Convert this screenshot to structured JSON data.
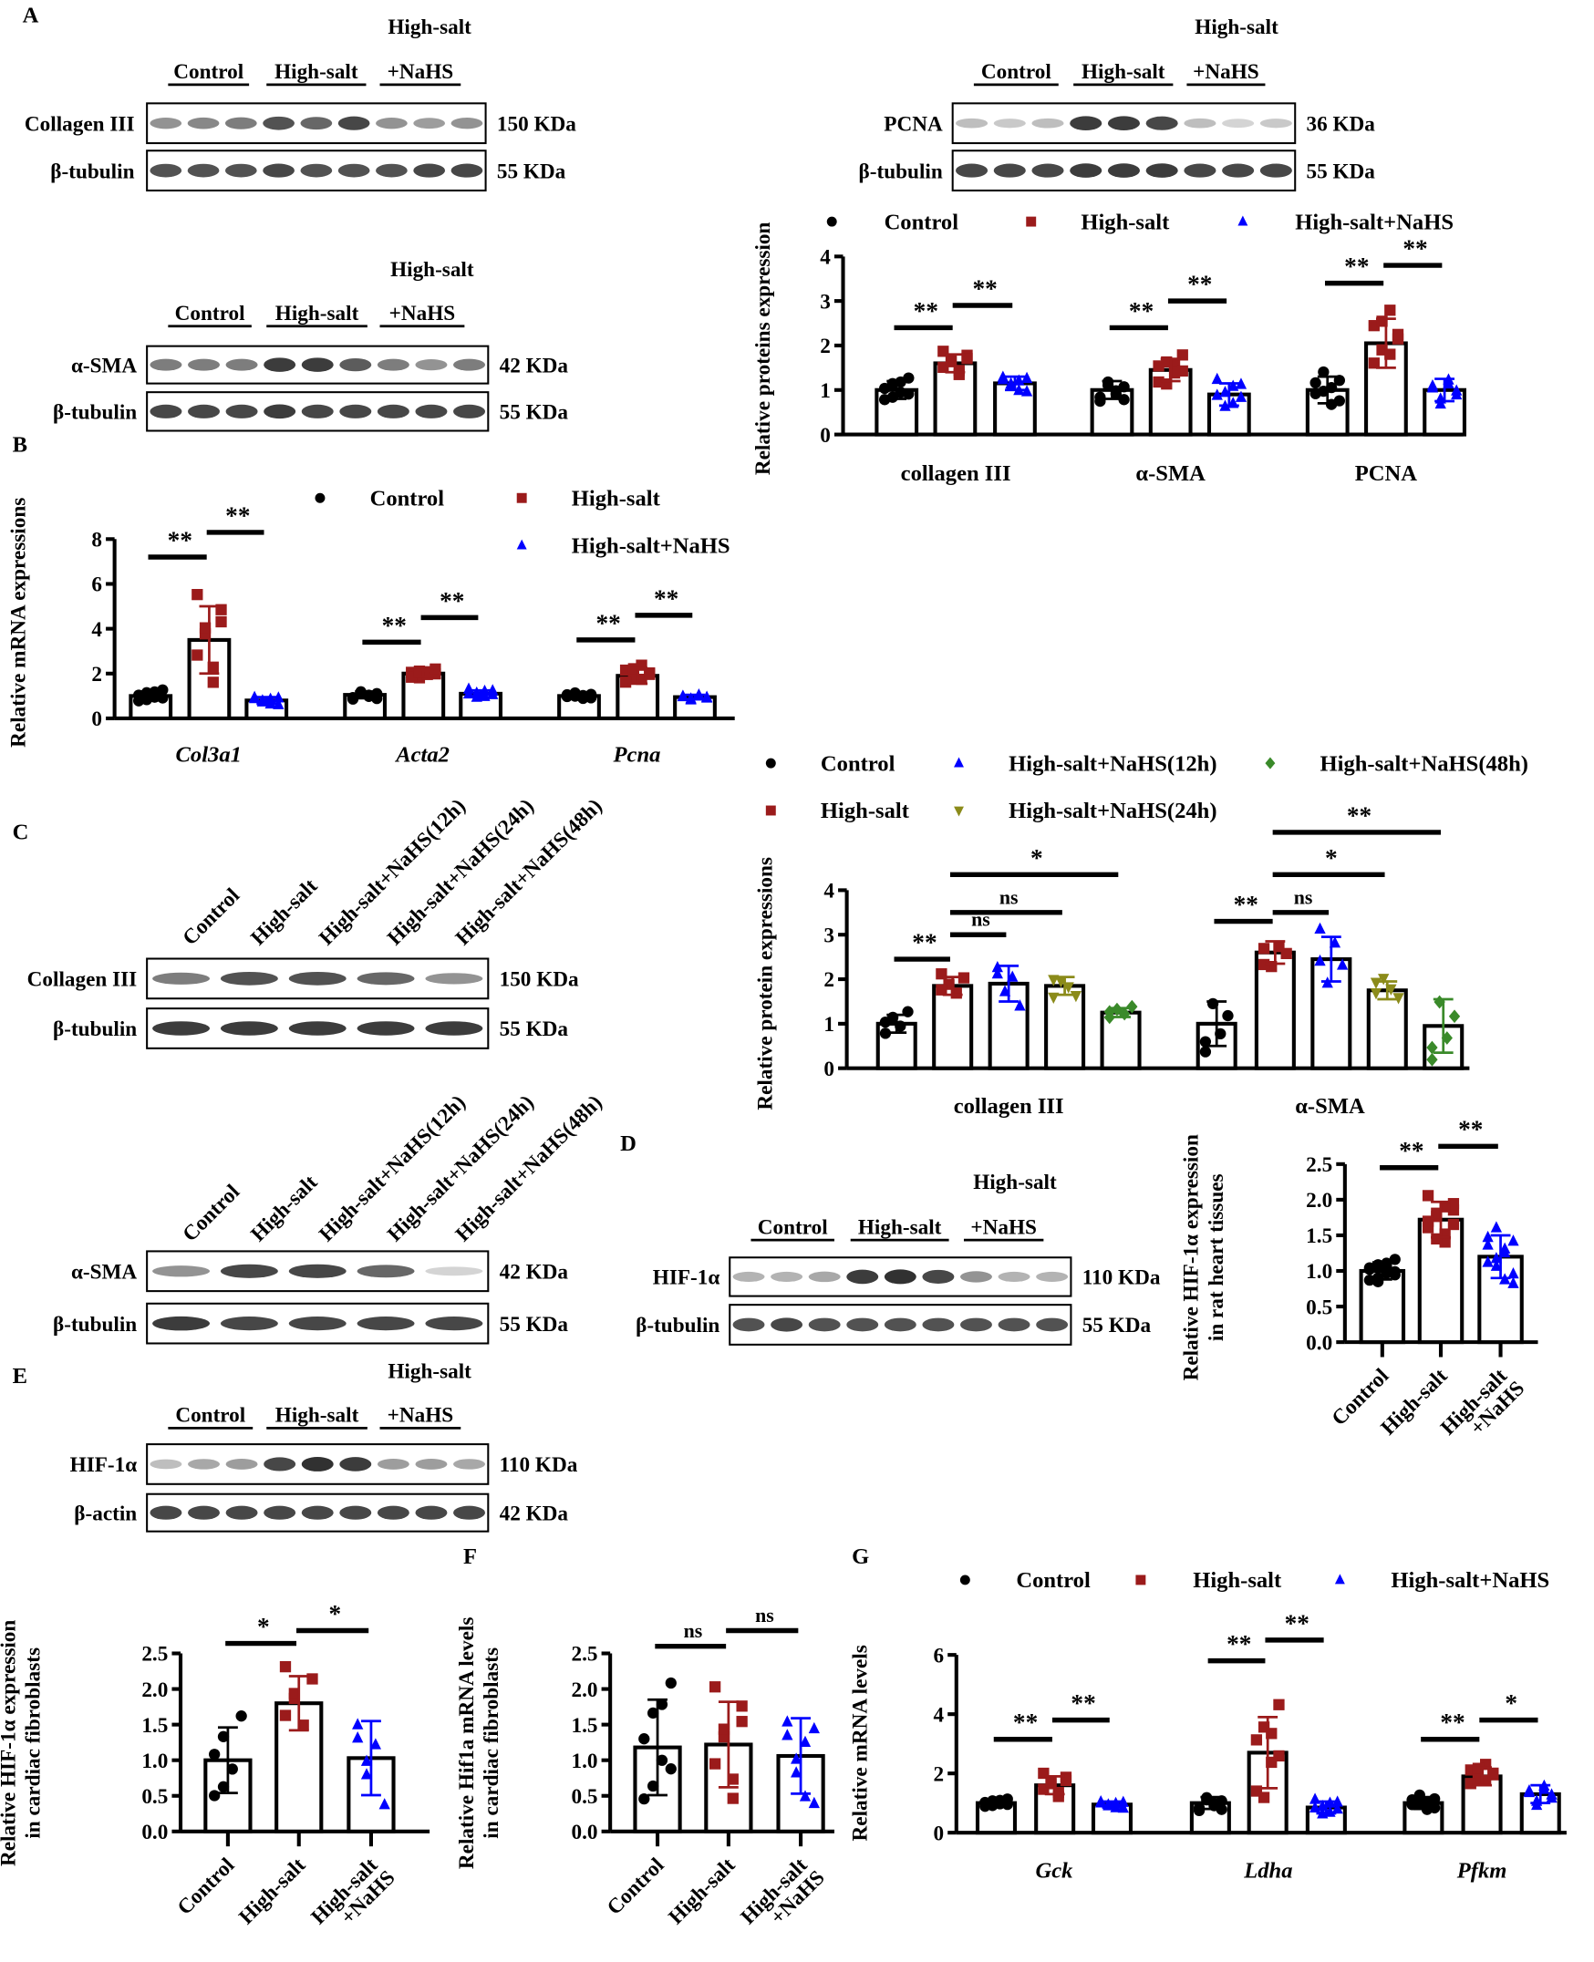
{
  "panels": [
    "A",
    "B",
    "C",
    "D",
    "E",
    "F",
    "G"
  ],
  "colors": {
    "Control": "#000000",
    "High-salt": "#9b1b1b",
    "NaHS": "#0000ff",
    "NaHS24": "#8b8b1a",
    "NaHS48": "#3a8a2a"
  },
  "blots": [
    {
      "id": "A1",
      "header": "High-salt",
      "groups": [
        "Control",
        "High-salt",
        "+NaHS"
      ],
      "rows": [
        {
          "label": "Collagen III",
          "size": "150 KDa",
          "bands": [
            0.5,
            0.55,
            0.6,
            0.8,
            0.7,
            0.85,
            0.5,
            0.45,
            0.5
          ]
        },
        {
          "label": "β-tubulin",
          "size": "55 KDa",
          "bands": [
            0.8,
            0.8,
            0.8,
            0.85,
            0.8,
            0.8,
            0.8,
            0.85,
            0.85
          ]
        }
      ]
    },
    {
      "id": "A2",
      "header": "High-salt",
      "groups": [
        "Control",
        "High-salt",
        "+NaHS"
      ],
      "rows": [
        {
          "label": "α-SMA",
          "size": "42 KDa",
          "bands": [
            0.6,
            0.6,
            0.6,
            0.9,
            0.9,
            0.75,
            0.6,
            0.5,
            0.6
          ]
        },
        {
          "label": "β-tubulin",
          "size": "55 KDa",
          "bands": [
            0.85,
            0.85,
            0.85,
            0.9,
            0.85,
            0.85,
            0.85,
            0.85,
            0.85
          ]
        }
      ]
    },
    {
      "id": "A3",
      "header": "High-salt",
      "groups": [
        "Control",
        "High-salt",
        "+NaHS"
      ],
      "rows": [
        {
          "label": "PCNA",
          "size": "36 KDa",
          "bands": [
            0.3,
            0.25,
            0.3,
            0.9,
            0.9,
            0.85,
            0.3,
            0.2,
            0.25
          ]
        },
        {
          "label": "β-tubulin",
          "size": "55 KDa",
          "bands": [
            0.85,
            0.85,
            0.85,
            0.9,
            0.9,
            0.9,
            0.85,
            0.85,
            0.85
          ]
        }
      ]
    },
    {
      "id": "C1",
      "lanes": [
        "Control",
        "High-salt",
        "High-salt+NaHS(12h)",
        "High-salt+NaHS(24h)",
        "High-salt+NaHS(48h)"
      ],
      "rows": [
        {
          "label": "Collagen III",
          "size": "150 KDa",
          "bands": [
            0.6,
            0.8,
            0.8,
            0.7,
            0.5
          ]
        },
        {
          "label": "β-tubulin",
          "size": "55 KDa",
          "bands": [
            0.9,
            0.9,
            0.9,
            0.9,
            0.9
          ]
        }
      ]
    },
    {
      "id": "C2",
      "lanes": [
        "Control",
        "High-salt",
        "High-salt+NaHS(12h)",
        "High-salt+NaHS(24h)",
        "High-salt+NaHS(48h)"
      ],
      "rows": [
        {
          "label": "α-SMA",
          "size": "42 KDa",
          "bands": [
            0.5,
            0.85,
            0.85,
            0.7,
            0.2
          ]
        },
        {
          "label": "β-tubulin",
          "size": "55 KDa",
          "bands": [
            0.9,
            0.85,
            0.85,
            0.85,
            0.85
          ]
        }
      ]
    },
    {
      "id": "D",
      "header": "High-salt",
      "groups": [
        "Control",
        "High-salt",
        "+NaHS"
      ],
      "rows": [
        {
          "label": "HIF-1α",
          "size": "110 KDa",
          "bands": [
            0.35,
            0.35,
            0.4,
            0.9,
            0.95,
            0.85,
            0.5,
            0.35,
            0.35
          ]
        },
        {
          "label": "β-tubulin",
          "size": "55 KDa",
          "bands": [
            0.8,
            0.85,
            0.8,
            0.8,
            0.8,
            0.8,
            0.8,
            0.8,
            0.8
          ]
        }
      ]
    },
    {
      "id": "E",
      "header": "High-salt",
      "groups": [
        "Control",
        "High-salt",
        "+NaHS"
      ],
      "rows": [
        {
          "label": "HIF-1α",
          "size": "110 KDa",
          "bands": [
            0.3,
            0.4,
            0.45,
            0.85,
            0.95,
            0.9,
            0.45,
            0.45,
            0.4
          ]
        },
        {
          "label": "β-actin",
          "size": "42 KDa",
          "bands": [
            0.85,
            0.85,
            0.85,
            0.85,
            0.85,
            0.85,
            0.85,
            0.85,
            0.85
          ]
        }
      ]
    }
  ],
  "chart_data": [
    {
      "id": "A-chart",
      "type": "bar",
      "ylabel": [
        "Relative proteins expression"
      ],
      "ylim": [
        0,
        4
      ],
      "yticks": [
        "0",
        "1",
        "2",
        "3",
        "4"
      ],
      "tickvals": [
        0,
        1,
        2,
        3,
        4
      ],
      "series": [
        {
          "name": "Control",
          "marker": "circle",
          "color": "#000000"
        },
        {
          "name": "High-salt",
          "marker": "square",
          "color": "#9b1b1b"
        },
        {
          "name": "High-salt+NaHS",
          "marker": "triangle",
          "color": "#0000ff"
        }
      ],
      "categories": [
        "collagen III",
        "α-SMA",
        "PCNA"
      ],
      "italic": false,
      "n": 8,
      "means": [
        [
          1.0,
          1.6,
          1.15
        ],
        [
          1.0,
          1.45,
          0.9
        ],
        [
          1.0,
          2.05,
          1.0
        ]
      ],
      "sd": [
        [
          0.2,
          0.2,
          0.15
        ],
        [
          0.2,
          0.25,
          0.25
        ],
        [
          0.3,
          0.55,
          0.25
        ]
      ],
      "sig": [
        {
          "g": 0,
          "a": 0,
          "b": 1,
          "y": 2.4,
          "label": "**"
        },
        {
          "g": 0,
          "a": 1,
          "b": 2,
          "y": 2.9,
          "label": "**"
        },
        {
          "g": 1,
          "a": 0,
          "b": 1,
          "y": 2.4,
          "label": "**"
        },
        {
          "g": 1,
          "a": 1,
          "b": 2,
          "y": 3.0,
          "label": "**"
        },
        {
          "g": 2,
          "a": 0,
          "b": 1,
          "y": 3.4,
          "label": "**"
        },
        {
          "g": 2,
          "a": 1,
          "b": 2,
          "y": 3.8,
          "label": "**"
        }
      ]
    },
    {
      "id": "B-chart",
      "type": "bar",
      "ylabel": [
        "Relative mRNA expressions"
      ],
      "ylim": [
        0,
        8
      ],
      "yticks": [
        "0",
        "2",
        "4",
        "6",
        "8"
      ],
      "tickvals": [
        0,
        2,
        4,
        6,
        8
      ],
      "series": [
        {
          "name": "Control",
          "marker": "circle",
          "color": "#000000"
        },
        {
          "name": "High-salt",
          "marker": "square",
          "color": "#9b1b1b"
        },
        {
          "name": "High-salt+NaHS",
          "marker": "triangle",
          "color": "#0000ff"
        }
      ],
      "categories": [
        "Col3a1",
        "Acta2",
        "Pcna"
      ],
      "italic": true,
      "n": 8,
      "means": [
        [
          1.0,
          3.5,
          0.8
        ],
        [
          1.05,
          2.0,
          1.1
        ],
        [
          1.0,
          1.9,
          0.95
        ]
      ],
      "sd": [
        [
          0.2,
          1.5,
          0.15
        ],
        [
          0.15,
          0.15,
          0.15
        ],
        [
          0.1,
          0.35,
          0.1
        ]
      ],
      "sig": [
        {
          "g": 0,
          "a": 0,
          "b": 1,
          "y": 7.2,
          "label": "**"
        },
        {
          "g": 0,
          "a": 1,
          "b": 2,
          "y": 8.3,
          "label": "**"
        },
        {
          "g": 1,
          "a": 0,
          "b": 1,
          "y": 3.4,
          "label": "**"
        },
        {
          "g": 1,
          "a": 1,
          "b": 2,
          "y": 4.5,
          "label": "**"
        },
        {
          "g": 2,
          "a": 0,
          "b": 1,
          "y": 3.5,
          "label": "**"
        },
        {
          "g": 2,
          "a": 1,
          "b": 2,
          "y": 4.6,
          "label": "**"
        }
      ]
    },
    {
      "id": "C-chart",
      "type": "bar",
      "ylabel": [
        "Relative protein expressions"
      ],
      "ylim": [
        0,
        4
      ],
      "yticks": [
        "0",
        "1",
        "2",
        "3",
        "4"
      ],
      "tickvals": [
        0,
        1,
        2,
        3,
        4
      ],
      "series": [
        {
          "name": "Control",
          "marker": "circle",
          "color": "#000000"
        },
        {
          "name": "High-salt",
          "marker": "square",
          "color": "#9b1b1b"
        },
        {
          "name": "High-salt+NaHS(12h)",
          "marker": "triangle",
          "color": "#0000ff"
        },
        {
          "name": "High-salt+NaHS(24h)",
          "marker": "invtriangle",
          "color": "#8b8b1a"
        },
        {
          "name": "High-salt+NaHS(48h)",
          "marker": "diamond",
          "color": "#3a8a2a"
        }
      ],
      "categories": [
        "collagen III",
        "α-SMA"
      ],
      "italic": false,
      "n": 5,
      "means": [
        [
          1.0,
          1.85,
          1.9,
          1.85,
          1.25
        ],
        [
          1.0,
          2.6,
          2.45,
          1.75,
          0.95
        ]
      ],
      "sd": [
        [
          0.2,
          0.2,
          0.4,
          0.2,
          0.1
        ],
        [
          0.5,
          0.25,
          0.5,
          0.2,
          0.6
        ]
      ],
      "sig": [
        {
          "g": 0,
          "a": 0,
          "b": 1,
          "y": 2.45,
          "label": "**"
        },
        {
          "g": 0,
          "a": 1,
          "b": 2,
          "y": 3.0,
          "label": "ns"
        },
        {
          "g": 0,
          "a": 1,
          "b": 3,
          "y": 3.5,
          "label": "ns"
        },
        {
          "g": 0,
          "a": 1,
          "b": 4,
          "y": 4.35,
          "label": "*"
        },
        {
          "g": 1,
          "a": 0,
          "b": 1,
          "y": 3.3,
          "label": "**"
        },
        {
          "g": 1,
          "a": 1,
          "b": 2,
          "y": 3.5,
          "label": "ns"
        },
        {
          "g": 1,
          "a": 1,
          "b": 3,
          "y": 4.35,
          "label": "*"
        },
        {
          "g": 1,
          "a": 1,
          "b": 4,
          "y": 5.3,
          "label": "**"
        }
      ]
    },
    {
      "id": "D-chart",
      "type": "bar",
      "ylabel": [
        "Relative HIF-1α expression",
        "in rat heart tissues"
      ],
      "ylim": [
        0,
        2.5
      ],
      "yticks": [
        "0.0",
        "0.5",
        "1.0",
        "1.5",
        "2.0",
        "2.5"
      ],
      "tickvals": [
        0,
        0.5,
        1,
        1.5,
        2,
        2.5
      ],
      "series": [
        {
          "name": "Control",
          "marker": "circle",
          "color": "#000000"
        },
        {
          "name": "High-salt",
          "marker": "square",
          "color": "#9b1b1b"
        },
        {
          "name": "High-salt+NaHS",
          "marker": "triangle",
          "color": "#0000ff"
        }
      ],
      "categories": [
        ""
      ],
      "xticklabels": [
        [
          "Control"
        ],
        [
          "High-salt"
        ],
        [
          "High-salt",
          "+NaHS"
        ]
      ],
      "n": 12,
      "means": [
        [
          1.0,
          1.72,
          1.2
        ]
      ],
      "sd": [
        [
          0.12,
          0.25,
          0.3
        ]
      ],
      "sig": [
        {
          "g": 0,
          "a": 0,
          "b": 1,
          "y": 2.45,
          "label": "**"
        },
        {
          "g": 0,
          "a": 1,
          "b": 2,
          "y": 2.75,
          "label": "**"
        }
      ]
    },
    {
      "id": "E-chart",
      "type": "bar",
      "ylabel": [
        "Relative HIF-1α  expression",
        "in cardiac fibroblasts"
      ],
      "ylim": [
        0,
        2.5
      ],
      "yticks": [
        "0.0",
        "0.5",
        "1.0",
        "1.5",
        "2.0",
        "2.5"
      ],
      "tickvals": [
        0,
        0.5,
        1,
        1.5,
        2,
        2.5
      ],
      "series": [
        {
          "name": "Control",
          "marker": "circle",
          "color": "#000000"
        },
        {
          "name": "High-salt",
          "marker": "square",
          "color": "#9b1b1b"
        },
        {
          "name": "High-salt+NaHS",
          "marker": "triangle",
          "color": "#0000ff"
        }
      ],
      "categories": [
        ""
      ],
      "xticklabels": [
        [
          "Control"
        ],
        [
          "High-salt"
        ],
        [
          "High-salt",
          "+NaHS"
        ]
      ],
      "n": 6,
      "means": [
        [
          1.0,
          1.8,
          1.03
        ]
      ],
      "sd": [
        [
          0.46,
          0.38,
          0.52
        ]
      ],
      "sig": [
        {
          "g": 0,
          "a": 0,
          "b": 1,
          "y": 2.64,
          "label": "*"
        },
        {
          "g": 0,
          "a": 1,
          "b": 2,
          "y": 2.82,
          "label": "*"
        }
      ]
    },
    {
      "id": "F-chart",
      "type": "bar",
      "ylabel": [
        "Relative Hif1a mRNA levels",
        "in cardiac fibroblasts"
      ],
      "ylim": [
        0,
        2.5
      ],
      "yticks": [
        "0.0",
        "0.5",
        "1.0",
        "1.5",
        "2.0",
        "2.5"
      ],
      "tickvals": [
        0,
        0.5,
        1,
        1.5,
        2,
        2.5
      ],
      "series": [
        {
          "name": "Control",
          "marker": "circle",
          "color": "#000000"
        },
        {
          "name": "High-salt",
          "marker": "square",
          "color": "#9b1b1b"
        },
        {
          "name": "High-salt+NaHS",
          "marker": "triangle",
          "color": "#0000ff"
        }
      ],
      "categories": [
        ""
      ],
      "xticklabels": [
        [
          "Control"
        ],
        [
          "High-salt"
        ],
        [
          "High-salt",
          "+NaHS"
        ]
      ],
      "n": 8,
      "means": [
        [
          1.18,
          1.22,
          1.06
        ]
      ],
      "sd": [
        [
          0.67,
          0.6,
          0.53
        ]
      ],
      "sig": [
        {
          "g": 0,
          "a": 0,
          "b": 1,
          "y": 2.6,
          "label": "ns"
        },
        {
          "g": 0,
          "a": 1,
          "b": 2,
          "y": 2.82,
          "label": "ns"
        }
      ]
    },
    {
      "id": "G-chart",
      "type": "bar",
      "ylabel": [
        "Relative  mRNA levels"
      ],
      "ylim": [
        0,
        6
      ],
      "yticks": [
        "0",
        "2",
        "4",
        "6"
      ],
      "tickvals": [
        0,
        2,
        4,
        6
      ],
      "series": [
        {
          "name": "Control",
          "marker": "circle",
          "color": "#000000"
        },
        {
          "name": "High-salt",
          "marker": "square",
          "color": "#9b1b1b"
        },
        {
          "name": "High-salt+NaHS",
          "marker": "triangle",
          "color": "#0000ff"
        }
      ],
      "categories": [
        "Gck",
        "Ldha",
        "Pfkm"
      ],
      "italic": true,
      "n": 8,
      "means": [
        [
          1.0,
          1.6,
          0.95
        ],
        [
          1.0,
          2.7,
          0.85
        ],
        [
          1.0,
          1.9,
          1.3
        ]
      ],
      "sd": [
        [
          0.1,
          0.3,
          0.1
        ],
        [
          0.2,
          1.2,
          0.2
        ],
        [
          0.2,
          0.3,
          0.3
        ]
      ],
      "sig": [
        {
          "g": 0,
          "a": 0,
          "b": 1,
          "y": 3.15,
          "label": "**"
        },
        {
          "g": 0,
          "a": 1,
          "b": 2,
          "y": 3.8,
          "label": "**"
        },
        {
          "g": 1,
          "a": 0,
          "b": 1,
          "y": 5.8,
          "label": "**"
        },
        {
          "g": 1,
          "a": 1,
          "b": 2,
          "y": 6.5,
          "label": "**"
        },
        {
          "g": 2,
          "a": 0,
          "b": 1,
          "y": 3.15,
          "label": "**"
        },
        {
          "g": 2,
          "a": 1,
          "b": 2,
          "y": 3.8,
          "label": "*"
        }
      ]
    }
  ]
}
